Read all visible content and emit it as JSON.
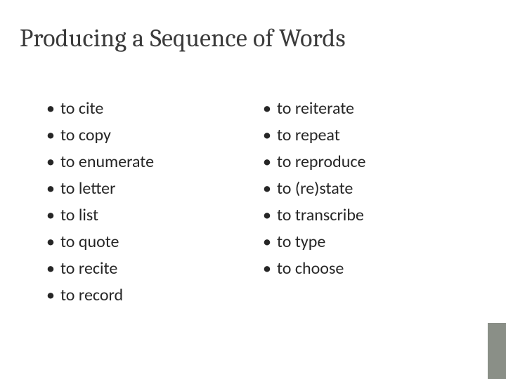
{
  "slide": {
    "title": "Producing a Sequence of Words",
    "title_fontsize": 36,
    "title_font": "Cambria",
    "title_color": "#3b3b3b",
    "body_fontsize": 24,
    "body_color": "#262626",
    "bullet_glyph": "•",
    "accent_color": "#8a8f87",
    "background_color": "#ffffff"
  },
  "columns": {
    "left": {
      "items": [
        {
          "label": "to cite"
        },
        {
          "label": "to copy"
        },
        {
          "label": "to enumerate"
        },
        {
          "label": "to letter"
        },
        {
          "label": "to list"
        },
        {
          "label": "to quote"
        },
        {
          "label": "to recite"
        },
        {
          "label": "to record"
        }
      ]
    },
    "right": {
      "items": [
        {
          "label": "to reiterate"
        },
        {
          "label": "to repeat"
        },
        {
          "label": "to reproduce"
        },
        {
          "label": "to (re)state"
        },
        {
          "label": "to transcribe"
        },
        {
          "label": "to type"
        },
        {
          "label": "to choose"
        }
      ]
    }
  }
}
